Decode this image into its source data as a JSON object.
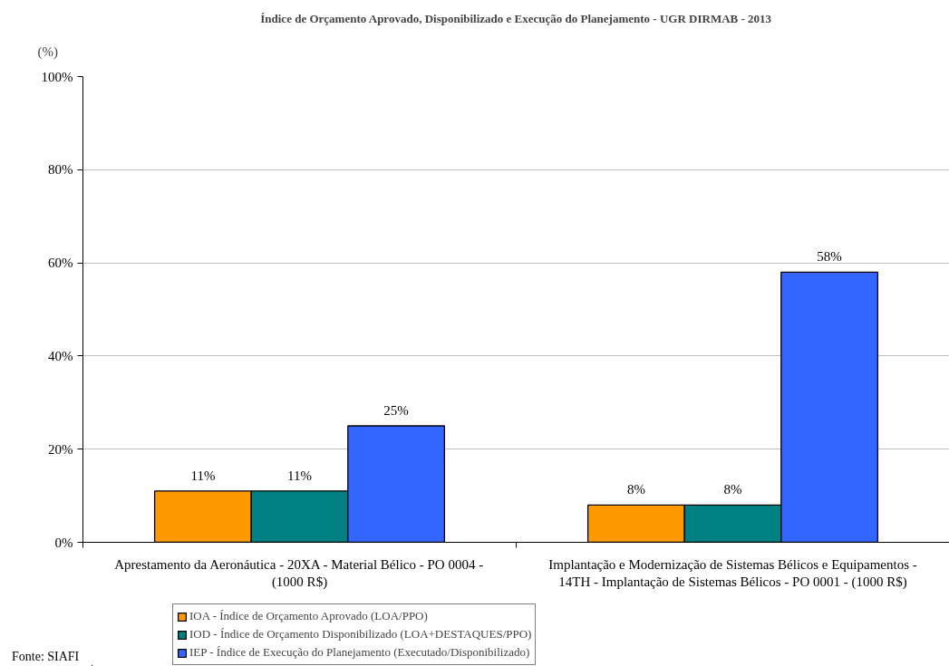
{
  "chart_data": {
    "type": "bar",
    "title": "Índice de Orçamento Aprovado, Disponibilizado e Execução do Planejamento - UGR DIRMAB - 2013",
    "ylabel": "(%)",
    "categories": [
      "Aprestamento da Aeronáutica - 20XA - Material Bélico - PO 0004 - (1000 R$)",
      "Implantação e Modernização de Sistemas Bélicos e Equipamentos - 14TH - Implantação de Sistemas Bélicos - PO 0001 - (1000 R$)"
    ],
    "series": [
      {
        "name": "IOA - Índice de Orçamento Aprovado (LOA/PPO)",
        "color": "#ff9900",
        "values": [
          11,
          8
        ],
        "value_labels": [
          "11%",
          "8%"
        ]
      },
      {
        "name": "IOD - Índice de Orçamento Disponibilizado (LOA+DESTAQUES/PPO)",
        "color": "#008080",
        "values": [
          11,
          8
        ],
        "value_labels": [
          "11%",
          "8%"
        ]
      },
      {
        "name": "IEP - Índice de Execução do Planejamento (Executado/Disponibilizado)",
        "color": "#3366ff",
        "values": [
          25,
          58
        ],
        "value_labels": [
          "25%",
          "58%"
        ]
      }
    ],
    "ylim": [
      0,
      100
    ],
    "yticks": [
      {
        "value": 0,
        "label": "0%"
      },
      {
        "value": 20,
        "label": "20%"
      },
      {
        "value": 40,
        "label": "40%"
      },
      {
        "value": 60,
        "label": "60%"
      },
      {
        "value": 80,
        "label": "80%"
      },
      {
        "value": 100,
        "label": "100%"
      }
    ],
    "grid": "y",
    "legend": "bottom",
    "annotations": [
      "Fonte: SIAFI"
    ]
  }
}
